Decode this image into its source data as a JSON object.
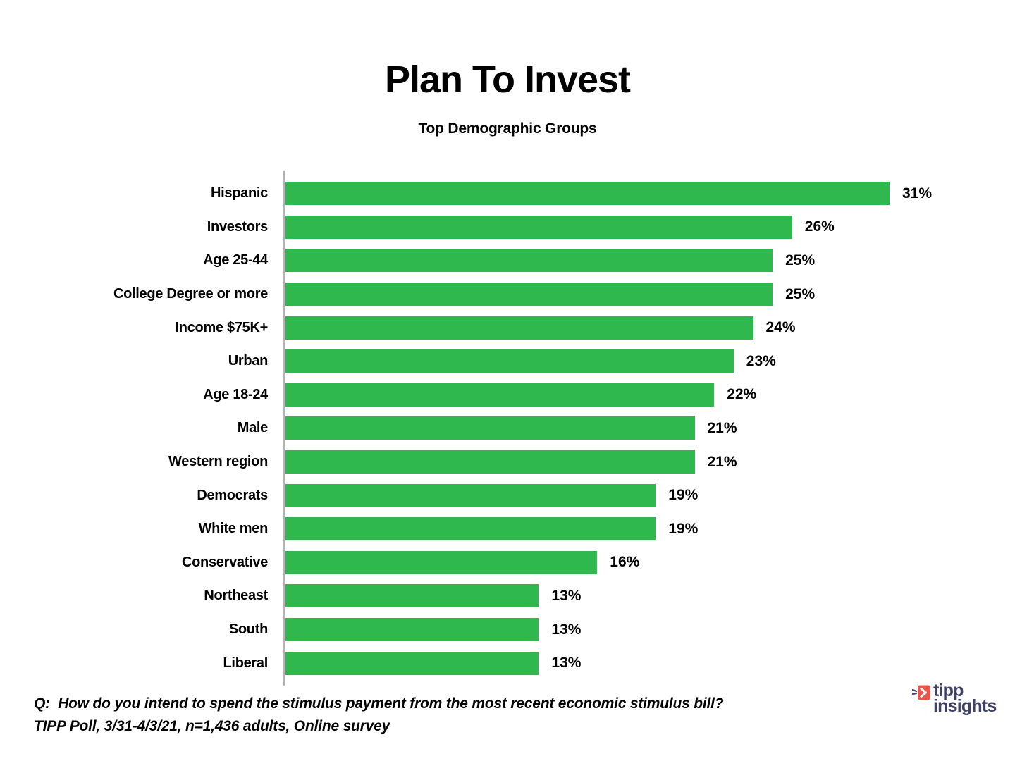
{
  "title": "Plan To Invest",
  "subtitle": "Top Demographic Groups",
  "chart_data": {
    "type": "bar",
    "orientation": "horizontal",
    "title": "Plan To Invest",
    "subtitle": "Top Demographic Groups",
    "categories": [
      "Hispanic",
      "Investors",
      "Age 25-44",
      "College Degree or more",
      "Income $75K+",
      "Urban",
      "Age 18-24",
      "Male",
      "Western region",
      "Democrats",
      "White men",
      "Conservative",
      "Northeast",
      "South",
      "Liberal"
    ],
    "values": [
      31,
      26,
      25,
      25,
      24,
      23,
      22,
      21,
      21,
      19,
      19,
      16,
      13,
      13,
      13
    ],
    "value_suffix": "%",
    "xlim": [
      0,
      31
    ],
    "grid": false,
    "legend": false,
    "bar_color": "#2eb84e",
    "axis_color": "#b3b3b3",
    "label_color": "#000000"
  },
  "footer": {
    "question": "Q:  How do you intend to spend the stimulus payment from the most recent economic stimulus bill?",
    "source": "TIPP Poll, 3/31-4/3/21, n=1,436 adults, Online survey"
  },
  "logo": {
    "line1": "tipp",
    "line2": "insights",
    "text_color": "#3e4266",
    "icon_color": "#e8554a"
  }
}
